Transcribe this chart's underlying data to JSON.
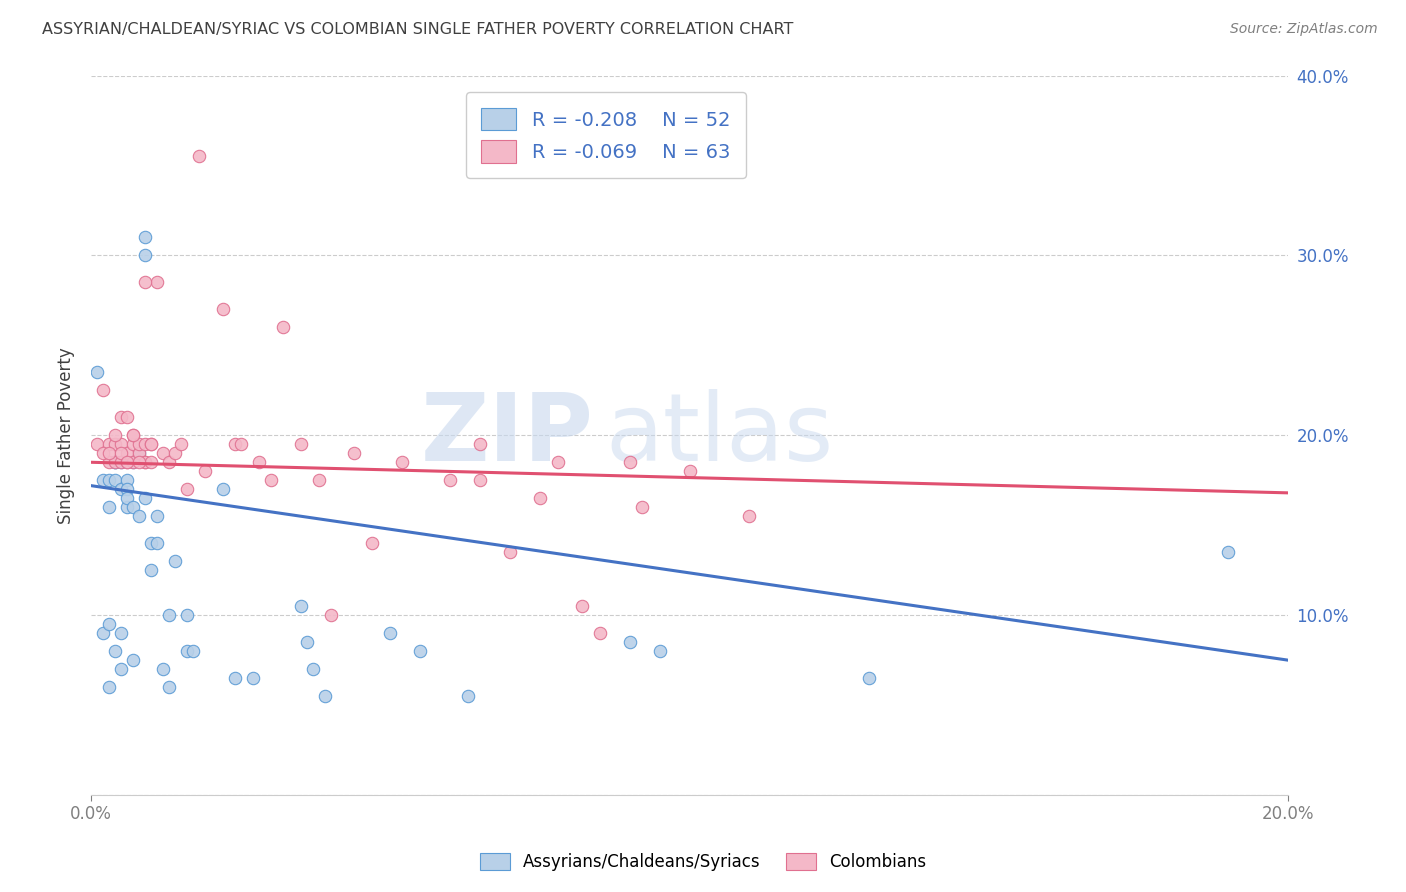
{
  "title": "ASSYRIAN/CHALDEAN/SYRIAC VS COLOMBIAN SINGLE FATHER POVERTY CORRELATION CHART",
  "source": "Source: ZipAtlas.com",
  "ylabel": "Single Father Poverty",
  "xlim": [
    0.0,
    0.2
  ],
  "ylim": [
    0.0,
    0.4
  ],
  "legend_blue_R": "R = -0.208",
  "legend_blue_N": "N = 52",
  "legend_pink_R": "R = -0.069",
  "legend_pink_N": "N = 63",
  "blue_fill_color": "#b8d0e8",
  "blue_edge_color": "#5b9bd5",
  "blue_line_color": "#4472c4",
  "pink_fill_color": "#f4b8c8",
  "pink_edge_color": "#e07090",
  "pink_line_color": "#e05070",
  "legend_text_color": "#4472c4",
  "right_tick_color": "#4472c4",
  "title_color": "#404040",
  "source_color": "#808080",
  "background_color": "#ffffff",
  "watermark_zip": "ZIP",
  "watermark_atlas": "atlas",
  "grid_color": "#cccccc",
  "yticks": [
    0.0,
    0.1,
    0.2,
    0.3,
    0.4
  ],
  "ytick_labels": [
    "",
    "10.0%",
    "20.0%",
    "30.0%",
    "40.0%"
  ],
  "xtick_positions": [
    0.0,
    0.2
  ],
  "xtick_labels": [
    "0.0%",
    "20.0%"
  ],
  "blue_line_y0": 0.172,
  "blue_line_y1": 0.075,
  "pink_line_y0": 0.185,
  "pink_line_y1": 0.168,
  "blue_scatter_x": [
    0.001,
    0.002,
    0.002,
    0.003,
    0.003,
    0.003,
    0.004,
    0.004,
    0.004,
    0.005,
    0.005,
    0.005,
    0.006,
    0.006,
    0.006,
    0.006,
    0.007,
    0.007,
    0.008,
    0.008,
    0.009,
    0.009,
    0.009,
    0.01,
    0.01,
    0.011,
    0.011,
    0.012,
    0.013,
    0.013,
    0.014,
    0.016,
    0.016,
    0.017,
    0.022,
    0.024,
    0.027,
    0.035,
    0.036,
    0.037,
    0.039,
    0.05,
    0.055,
    0.063,
    0.09,
    0.095,
    0.13,
    0.19,
    0.003,
    0.004,
    0.005,
    0.007
  ],
  "blue_scatter_y": [
    0.235,
    0.175,
    0.09,
    0.095,
    0.175,
    0.16,
    0.185,
    0.185,
    0.175,
    0.185,
    0.17,
    0.09,
    0.175,
    0.17,
    0.16,
    0.165,
    0.185,
    0.16,
    0.19,
    0.155,
    0.3,
    0.31,
    0.165,
    0.125,
    0.14,
    0.155,
    0.14,
    0.07,
    0.1,
    0.06,
    0.13,
    0.1,
    0.08,
    0.08,
    0.17,
    0.065,
    0.065,
    0.105,
    0.085,
    0.07,
    0.055,
    0.09,
    0.08,
    0.055,
    0.085,
    0.08,
    0.065,
    0.135,
    0.06,
    0.08,
    0.07,
    0.075
  ],
  "pink_scatter_x": [
    0.001,
    0.002,
    0.003,
    0.003,
    0.004,
    0.004,
    0.005,
    0.005,
    0.005,
    0.006,
    0.006,
    0.006,
    0.007,
    0.007,
    0.007,
    0.008,
    0.008,
    0.009,
    0.009,
    0.009,
    0.01,
    0.01,
    0.011,
    0.012,
    0.013,
    0.014,
    0.015,
    0.016,
    0.018,
    0.019,
    0.022,
    0.024,
    0.025,
    0.028,
    0.03,
    0.032,
    0.035,
    0.038,
    0.04,
    0.044,
    0.047,
    0.052,
    0.06,
    0.065,
    0.065,
    0.07,
    0.075,
    0.078,
    0.082,
    0.085,
    0.09,
    0.092,
    0.1,
    0.11,
    0.002,
    0.003,
    0.004,
    0.005,
    0.006,
    0.007,
    0.008,
    0.009,
    0.01
  ],
  "pink_scatter_y": [
    0.195,
    0.225,
    0.185,
    0.195,
    0.185,
    0.195,
    0.185,
    0.21,
    0.195,
    0.185,
    0.19,
    0.21,
    0.195,
    0.2,
    0.185,
    0.19,
    0.195,
    0.185,
    0.185,
    0.195,
    0.195,
    0.185,
    0.285,
    0.19,
    0.185,
    0.19,
    0.195,
    0.17,
    0.355,
    0.18,
    0.27,
    0.195,
    0.195,
    0.185,
    0.175,
    0.26,
    0.195,
    0.175,
    0.1,
    0.19,
    0.14,
    0.185,
    0.175,
    0.175,
    0.195,
    0.135,
    0.165,
    0.185,
    0.105,
    0.09,
    0.185,
    0.16,
    0.18,
    0.155,
    0.19,
    0.19,
    0.2,
    0.19,
    0.185,
    0.2,
    0.185,
    0.285,
    0.195
  ]
}
